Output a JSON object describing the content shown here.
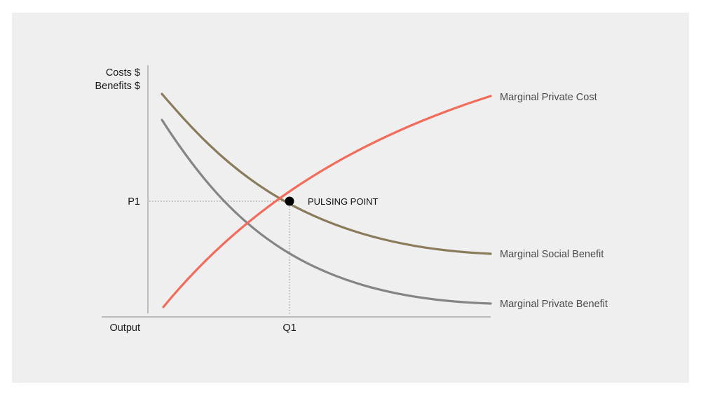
{
  "chart_data": {
    "type": "line",
    "title": "",
    "ylabel_lines": [
      "Costs $",
      "Benefits $"
    ],
    "xlabel": "Output",
    "x_tick_labels": [
      "Q1"
    ],
    "y_tick_labels": [
      "P1"
    ],
    "annotation": "PULSING POINT",
    "xlim": [
      0,
      100
    ],
    "ylim": [
      0,
      100
    ],
    "grid": false,
    "legend": "right-end-labels",
    "series": [
      {
        "name": "Marginal Private Cost",
        "color": "#f26b5b",
        "x": [
          4,
          12,
          20,
          28,
          36,
          48,
          60,
          72,
          84,
          100
        ],
        "y": [
          3,
          18,
          32,
          45,
          55,
          67,
          76,
          84,
          91,
          88.5
        ]
      },
      {
        "name": "Marginal Social Benefit",
        "color": "#8a7b5a",
        "x": [
          4,
          12,
          20,
          28,
          36,
          48,
          60,
          72,
          84,
          100
        ],
        "y": [
          89.5,
          78,
          68,
          60,
          54,
          45,
          38,
          31,
          25,
          25
        ]
      },
      {
        "name": "Marginal Private Benefit",
        "color": "#858585",
        "x": [
          4,
          12,
          20,
          28,
          36,
          48,
          60,
          72,
          84,
          100
        ],
        "y": [
          79.5,
          65,
          52,
          43,
          34,
          24,
          16,
          10,
          6,
          5
        ]
      }
    ],
    "point": {
      "x": 36,
      "y": 46
    }
  }
}
